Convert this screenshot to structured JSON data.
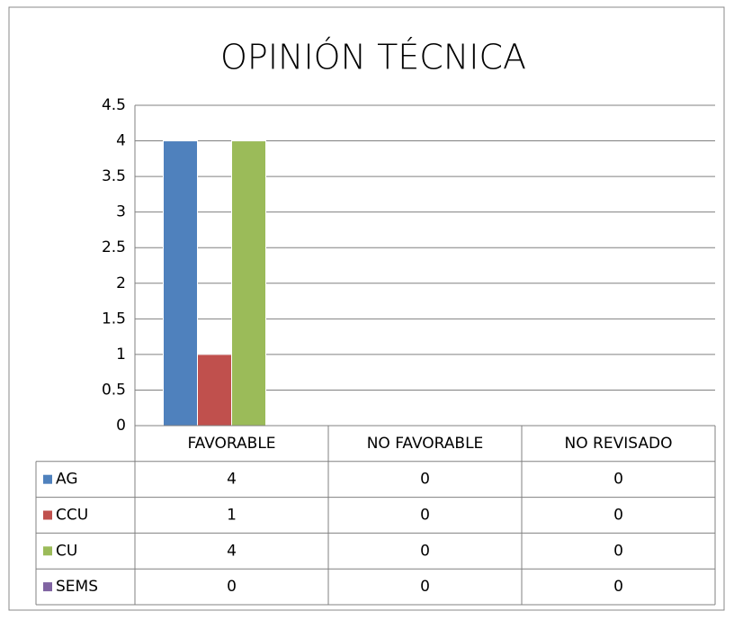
{
  "chart_data": {
    "type": "bar",
    "title": "OPINIÓN TÉCNICA",
    "categories": [
      "FAVORABLE",
      "NO FAVORABLE",
      "NO REVISADO"
    ],
    "series": [
      {
        "name": "AG",
        "color": "#4f81bd",
        "values": [
          4,
          0,
          0
        ]
      },
      {
        "name": "CCU",
        "color": "#c0504d",
        "values": [
          1,
          0,
          0
        ]
      },
      {
        "name": "CU",
        "color": "#9bbb59",
        "values": [
          4,
          0,
          0
        ]
      },
      {
        "name": "SEMS",
        "color": "#8064a2",
        "values": [
          0,
          0,
          0
        ]
      }
    ],
    "ylim": [
      0,
      4.5
    ],
    "yticks": [
      0,
      0.5,
      1,
      1.5,
      2,
      2.5,
      3,
      3.5,
      4,
      4.5
    ],
    "grid": true
  }
}
